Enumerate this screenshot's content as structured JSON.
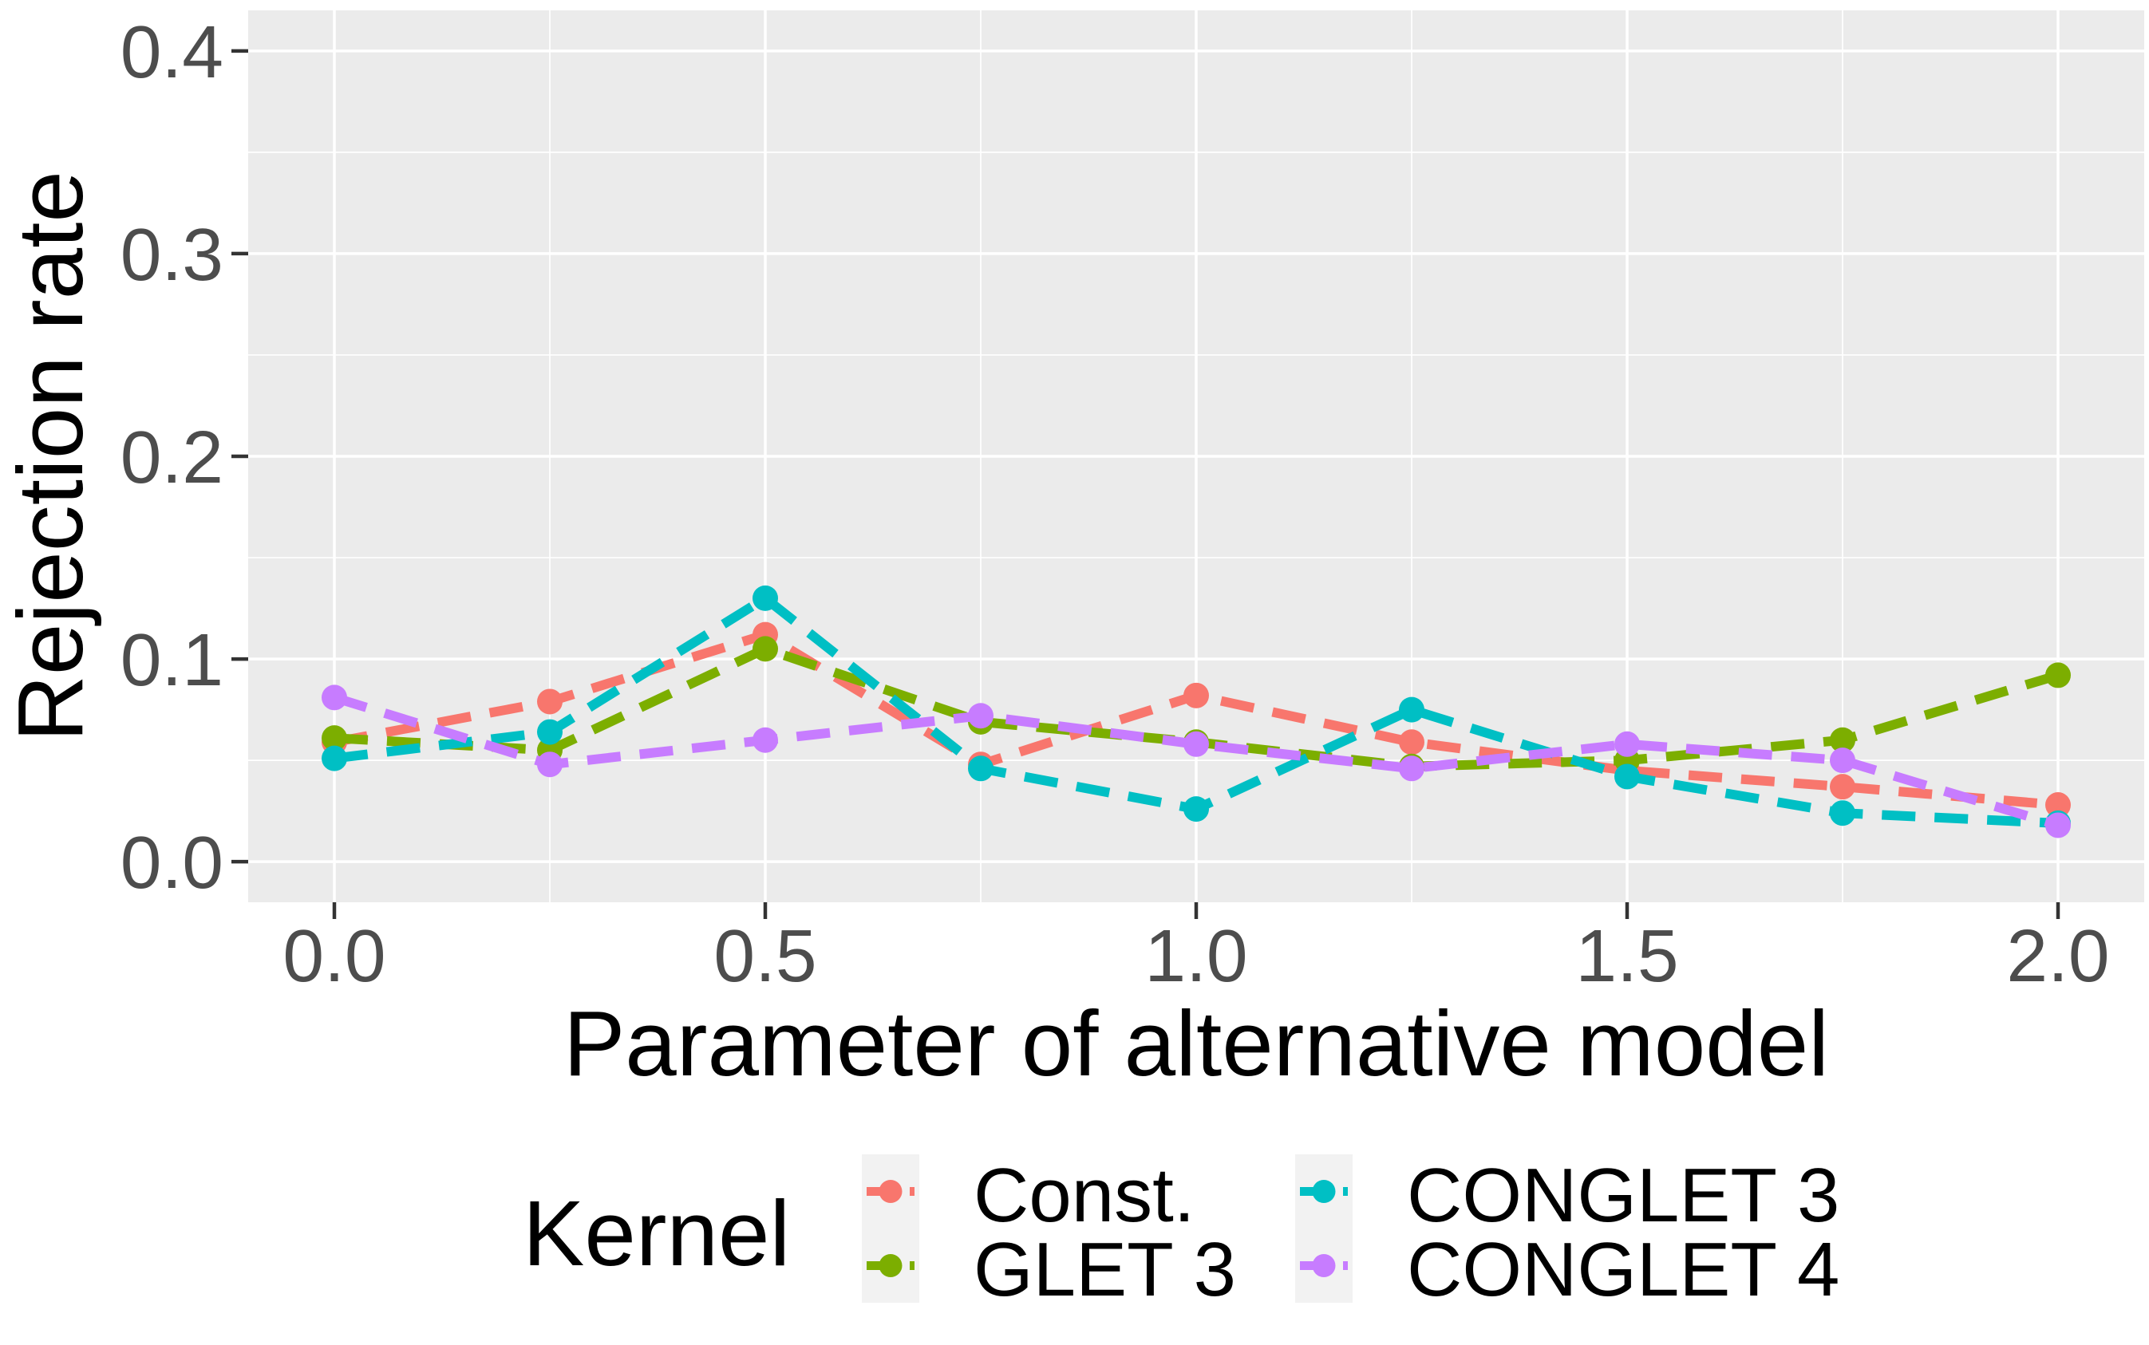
{
  "chart_data": {
    "type": "line",
    "line_style": "dashed",
    "marker": "circle",
    "grid": true,
    "legend_position": "bottom",
    "x": [
      0,
      0.25,
      0.5,
      0.75,
      1.0,
      1.25,
      1.5,
      1.75,
      2.0
    ],
    "series": [
      {
        "name": "Const.",
        "color": "#F8766D",
        "values": [
          0.059,
          0.079,
          0.112,
          0.048,
          0.082,
          0.059,
          0.045,
          0.037,
          0.028
        ]
      },
      {
        "name": "GLET 3",
        "color": "#7CAE00",
        "values": [
          0.061,
          0.055,
          0.105,
          0.069,
          0.059,
          0.047,
          0.05,
          0.06,
          0.092
        ]
      },
      {
        "name": "CONGLET 3",
        "color": "#00BFC4",
        "values": [
          0.051,
          0.064,
          0.13,
          0.046,
          0.026,
          0.075,
          0.042,
          0.024,
          0.019
        ]
      },
      {
        "name": "CONGLET 4",
        "color": "#C77CFF",
        "values": [
          0.081,
          0.048,
          0.06,
          0.072,
          0.058,
          0.046,
          0.058,
          0.05,
          0.018
        ]
      }
    ],
    "xlabel": "Parameter of alternative model",
    "ylabel": "Rejection rate",
    "legend_title": "Kernel",
    "x_ticks": [
      0,
      0.5,
      1.0,
      1.5,
      2.0
    ],
    "x_tick_labels": [
      "0.0",
      "0.5",
      "1.0",
      "1.5",
      "2.0"
    ],
    "y_ticks": [
      0,
      0.1,
      0.2,
      0.3,
      0.4
    ],
    "y_tick_labels": [
      "0.0",
      "0.1",
      "0.2",
      "0.3",
      "0.4"
    ],
    "xlim": [
      -0.1,
      2.1
    ],
    "ylim": [
      -0.02,
      0.42
    ],
    "panel_fill": "#EBEBEB",
    "grid_color": "#FFFFFF",
    "tick_mark_color": "#333333",
    "tick_label_color": "#4D4D4D",
    "legend_key_fill": "#F2F2F2"
  }
}
